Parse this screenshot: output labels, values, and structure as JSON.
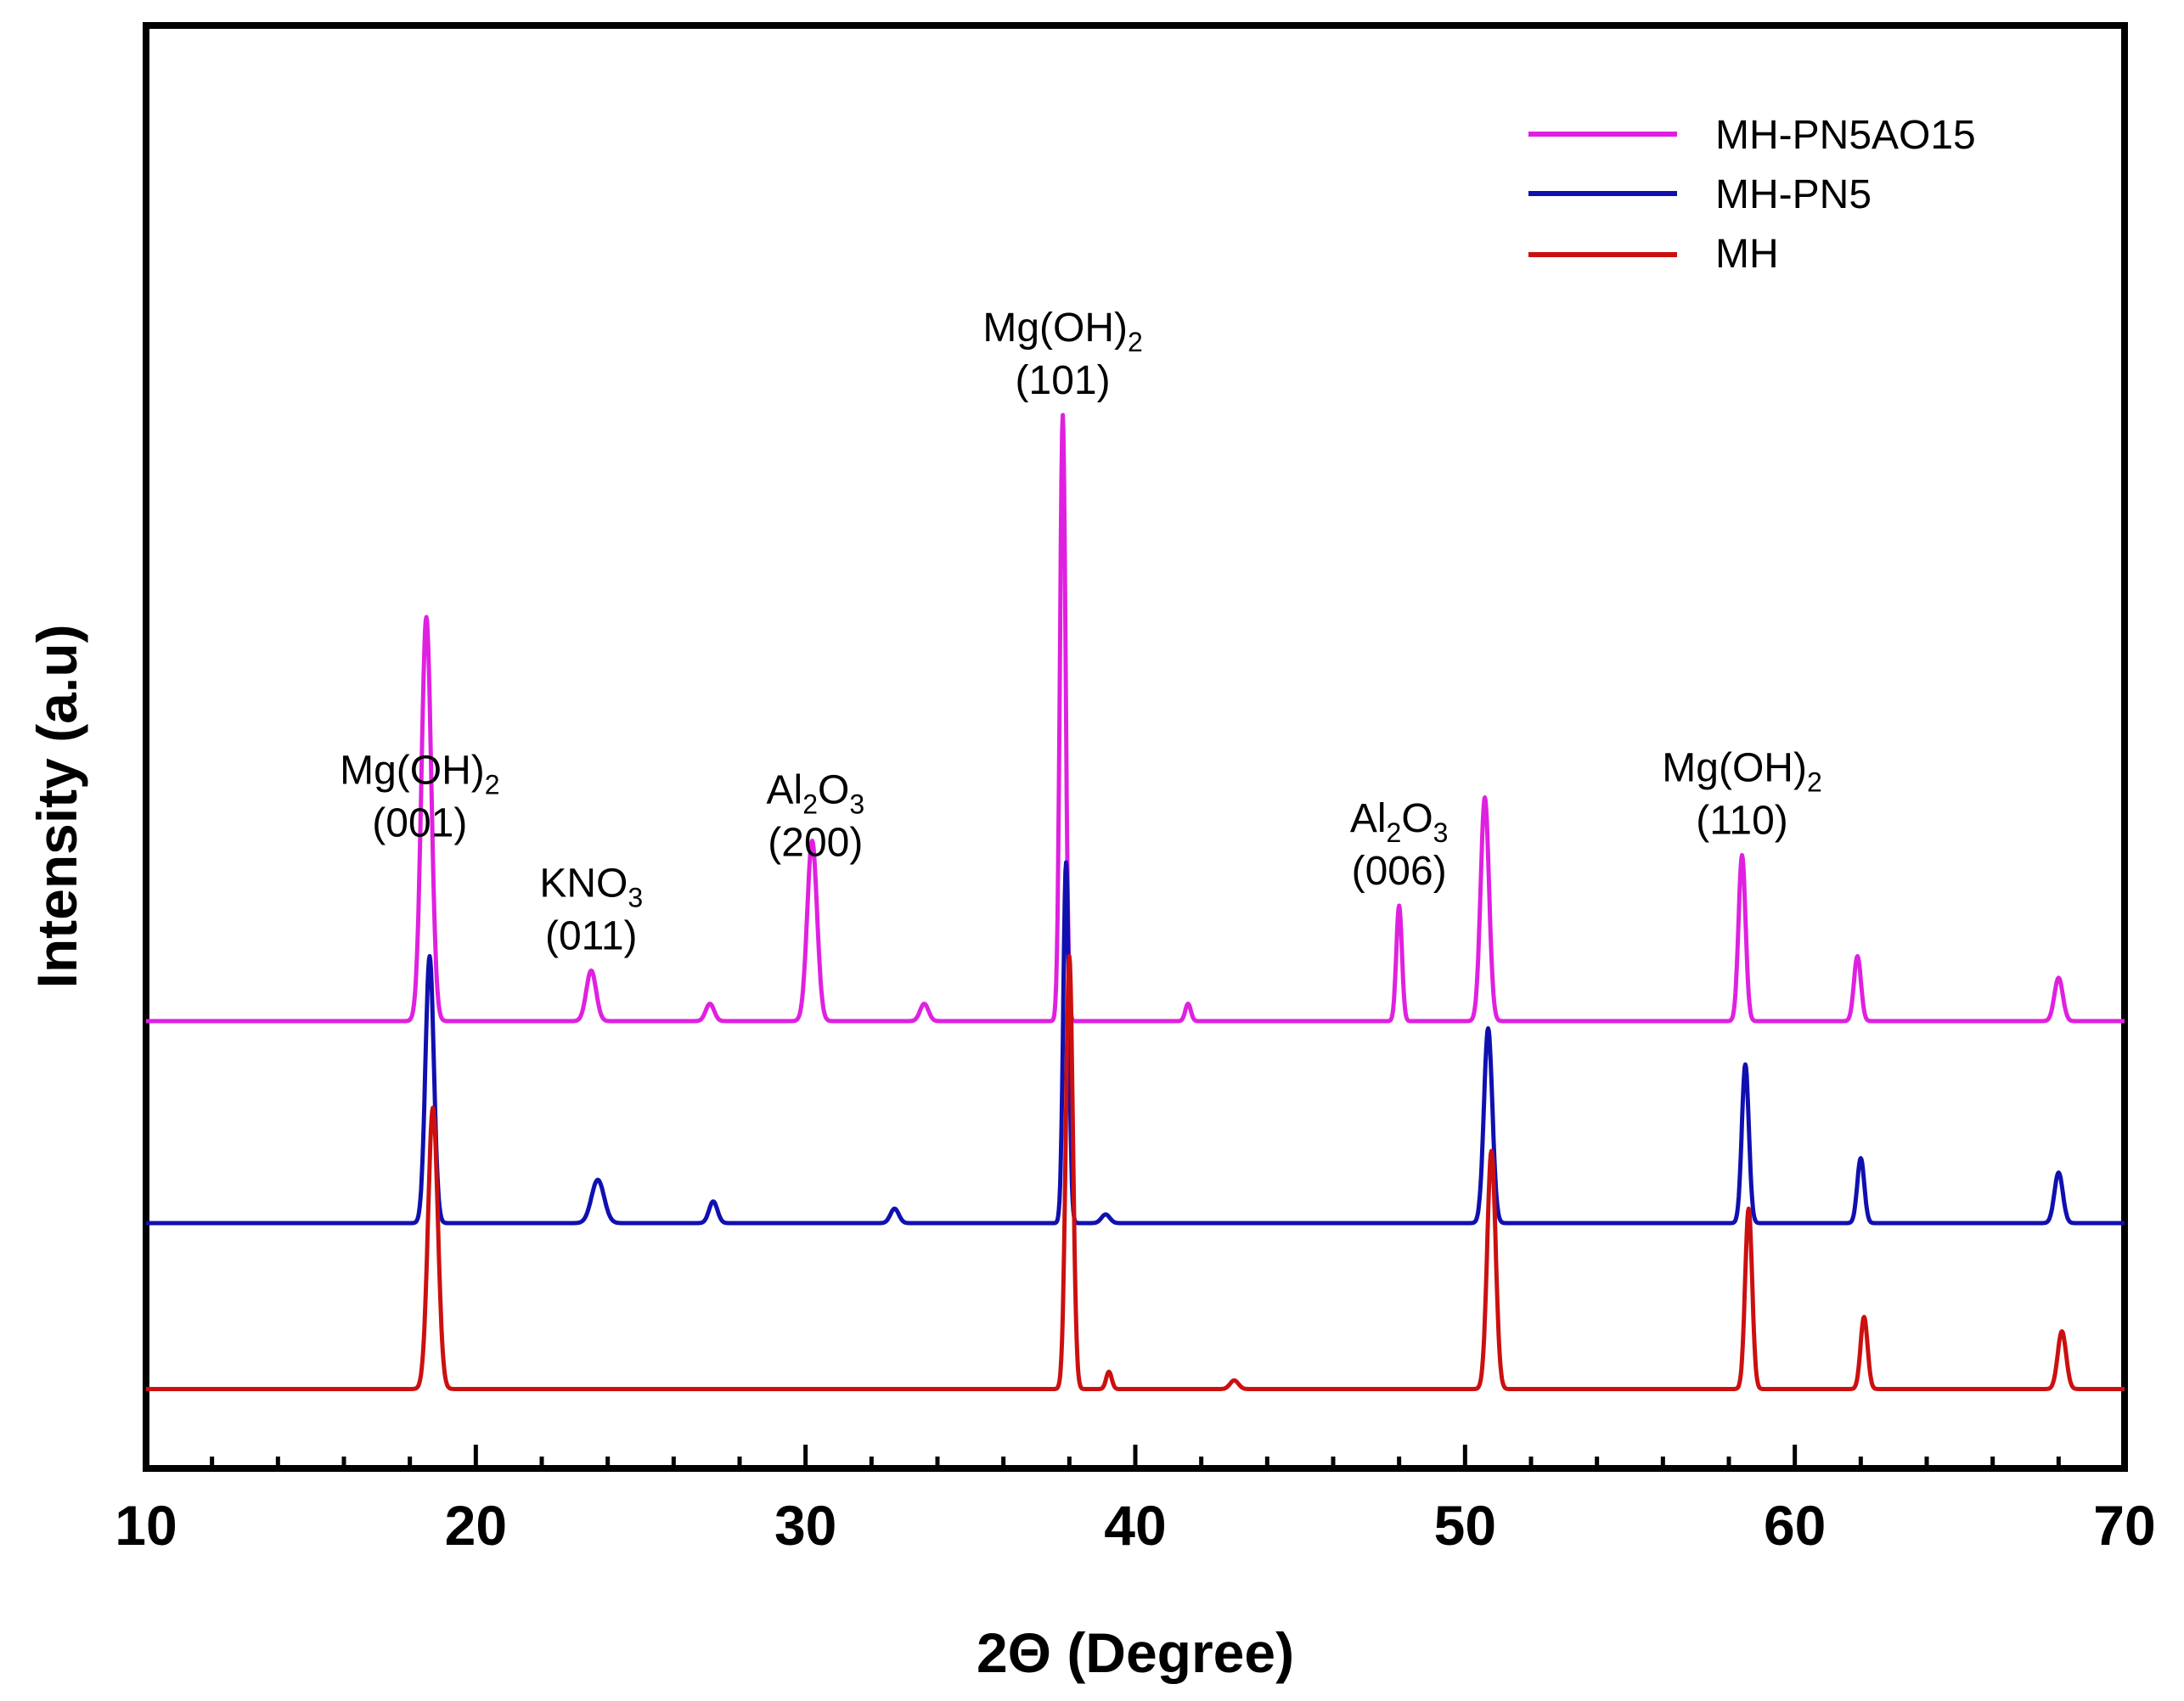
{
  "chart_data": {
    "type": "line",
    "title": "",
    "xlabel": "2Θ (Degree)",
    "ylabel": "Intensity (a.u)",
    "xlim": [
      10,
      70
    ],
    "ylim": [
      0,
      1
    ],
    "x_ticks": [
      10,
      20,
      30,
      40,
      50,
      60,
      70
    ],
    "y_ticks_shown": false,
    "grid": false,
    "legend_position": "top-right",
    "series": [
      {
        "name": "MH-PN5AO15",
        "color": "#e020e0",
        "baseline": 0.31,
        "peaks": [
          {
            "x": 18.5,
            "h": 0.28,
            "w": 0.35
          },
          {
            "x": 23.5,
            "h": 0.035,
            "w": 0.35
          },
          {
            "x": 27.1,
            "h": 0.012,
            "w": 0.3
          },
          {
            "x": 30.2,
            "h": 0.125,
            "w": 0.35
          },
          {
            "x": 33.6,
            "h": 0.012,
            "w": 0.3
          },
          {
            "x": 37.8,
            "h": 0.42,
            "w": 0.2
          },
          {
            "x": 41.6,
            "h": 0.012,
            "w": 0.2
          },
          {
            "x": 48.0,
            "h": 0.08,
            "w": 0.2
          },
          {
            "x": 50.6,
            "h": 0.155,
            "w": 0.3
          },
          {
            "x": 58.4,
            "h": 0.115,
            "w": 0.25
          },
          {
            "x": 61.9,
            "h": 0.045,
            "w": 0.25
          },
          {
            "x": 68.0,
            "h": 0.03,
            "w": 0.3
          }
        ]
      },
      {
        "name": "MH-PN5",
        "color": "#1010b0",
        "baseline": 0.17,
        "peaks": [
          {
            "x": 18.6,
            "h": 0.185,
            "w": 0.3
          },
          {
            "x": 23.7,
            "h": 0.03,
            "w": 0.45
          },
          {
            "x": 27.2,
            "h": 0.015,
            "w": 0.3
          },
          {
            "x": 32.7,
            "h": 0.01,
            "w": 0.3
          },
          {
            "x": 37.9,
            "h": 0.25,
            "w": 0.2
          },
          {
            "x": 39.1,
            "h": 0.006,
            "w": 0.3
          },
          {
            "x": 50.7,
            "h": 0.135,
            "w": 0.3
          },
          {
            "x": 58.5,
            "h": 0.11,
            "w": 0.25
          },
          {
            "x": 62.0,
            "h": 0.045,
            "w": 0.25
          },
          {
            "x": 68.0,
            "h": 0.035,
            "w": 0.3
          }
        ]
      },
      {
        "name": "MH",
        "color": "#cc1010",
        "baseline": 0.055,
        "peaks": [
          {
            "x": 18.7,
            "h": 0.195,
            "w": 0.35
          },
          {
            "x": 38.0,
            "h": 0.3,
            "w": 0.25
          },
          {
            "x": 39.2,
            "h": 0.012,
            "w": 0.2
          },
          {
            "x": 43.0,
            "h": 0.006,
            "w": 0.3
          },
          {
            "x": 50.8,
            "h": 0.165,
            "w": 0.3
          },
          {
            "x": 58.6,
            "h": 0.125,
            "w": 0.25
          },
          {
            "x": 62.1,
            "h": 0.05,
            "w": 0.25
          },
          {
            "x": 68.1,
            "h": 0.04,
            "w": 0.3
          }
        ]
      }
    ],
    "annotations": [
      {
        "compound": "Mg(OH)",
        "sub": "2",
        "plane": "(001)",
        "x": 18.3
      },
      {
        "compound": "KNO",
        "sub": "3",
        "plane": "(011)",
        "x": 23.5
      },
      {
        "compound": "Al",
        "sub": "2",
        "compound2": "O",
        "sub2": "3",
        "plane": "(200)",
        "x": 30.3
      },
      {
        "compound": "Mg(OH)",
        "sub": "2",
        "plane": "(101)",
        "x": 37.8
      },
      {
        "compound": "Al",
        "sub": "2",
        "compound2": "O",
        "sub2": "3",
        "plane": "(006)",
        "x": 48.0
      },
      {
        "compound": "Mg(OH)",
        "sub": "2",
        "plane": "(110)",
        "x": 58.4
      }
    ]
  }
}
